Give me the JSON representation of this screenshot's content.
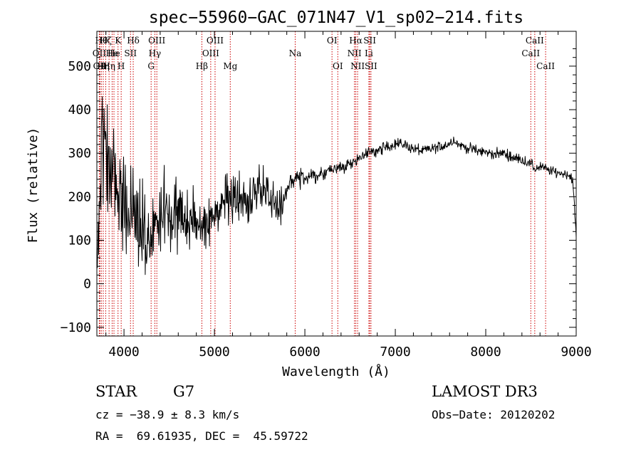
{
  "chart_data": {
    "type": "line",
    "title": "spec−55960−GAC_071N47_V1_sp02−214.fits",
    "xlabel": "Wavelength (Å)",
    "ylabel": "Flux (relative)",
    "xlim": [
      3700,
      9000
    ],
    "ylim": [
      -120,
      580
    ],
    "xticks": [
      4000,
      5000,
      6000,
      7000,
      8000,
      9000
    ],
    "xtick_labels": [
      "4000",
      "5000",
      "6000",
      "7000",
      "8000",
      "9000"
    ],
    "yticks": [
      -100,
      0,
      100,
      200,
      300,
      400,
      500
    ],
    "ytick_labels": [
      "−100",
      "0",
      "100",
      "200",
      "300",
      "400",
      "500"
    ],
    "grid": false,
    "series": [
      {
        "name": "flux",
        "color": "#000000",
        "anchors": {
          "x": [
            3700,
            3720,
            3760,
            3800,
            3850,
            3900,
            3950,
            4000,
            4050,
            4100,
            4150,
            4200,
            4250,
            4300,
            4350,
            4400,
            4500,
            4600,
            4700,
            4800,
            4860,
            4900,
            5000,
            5100,
            5200,
            5300,
            5400,
            5500,
            5600,
            5700,
            5760,
            5800,
            5850,
            5900,
            6000,
            6100,
            6200,
            6300,
            6400,
            6500,
            6560,
            6600,
            6700,
            6800,
            6900,
            7000,
            7100,
            7200,
            7300,
            7400,
            7500,
            7600,
            7640,
            7700,
            7800,
            7900,
            8000,
            8100,
            8200,
            8300,
            8400,
            8500,
            8550,
            8600,
            8700,
            8800,
            8900,
            8960,
            9000
          ],
          "y": [
            60,
            150,
            300,
            320,
            280,
            250,
            230,
            200,
            190,
            180,
            150,
            120,
            100,
            110,
            140,
            160,
            170,
            150,
            140,
            150,
            130,
            140,
            160,
            175,
            180,
            190,
            200,
            215,
            210,
            175,
            170,
            215,
            235,
            245,
            240,
            250,
            250,
            265,
            265,
            275,
            285,
            290,
            300,
            305,
            315,
            322,
            320,
            310,
            305,
            310,
            315,
            322,
            332,
            320,
            312,
            306,
            302,
            298,
            300,
            290,
            285,
            275,
            263,
            270,
            260,
            255,
            252,
            242,
            110
          ]
        },
        "noise": {
          "x": [
            3700,
            3800,
            4000,
            4300,
            4500,
            4800,
            5200,
            5700,
            5800,
            6500,
            9000
          ],
          "amplitude": [
            80,
            110,
            95,
            85,
            75,
            55,
            55,
            45,
            22,
            12,
            10
          ]
        }
      }
    ],
    "line_markers": [
      {
        "wavelength": 3727,
        "label": "OII",
        "row": 2
      },
      {
        "wavelength": 3734,
        "label": "OII",
        "row": 3
      },
      {
        "wavelength": 3750,
        "label": "Hθ",
        "row": 1
      },
      {
        "wavelength": 3771,
        "label": "Hη",
        "row": 3
      },
      {
        "wavelength": 3798,
        "label": "Hζ",
        "row": 1
      },
      {
        "wavelength": 3835,
        "label": "Hη",
        "row": 3
      },
      {
        "wavelength": 3869,
        "label": "He",
        "row": 2
      },
      {
        "wavelength": 3889,
        "label": "He",
        "row": 2
      },
      {
        "wavelength": 3934,
        "label": "K",
        "row": 1
      },
      {
        "wavelength": 3969,
        "label": "H",
        "row": 3
      },
      {
        "wavelength": 4072,
        "label": "SII",
        "row": 2
      },
      {
        "wavelength": 4102,
        "label": "Hδ",
        "row": 1
      },
      {
        "wavelength": 4300,
        "label": "G",
        "row": 3
      },
      {
        "wavelength": 4341,
        "label": "Hγ",
        "row": 2
      },
      {
        "wavelength": 4363,
        "label": "OIII",
        "row": 1
      },
      {
        "wavelength": 4861,
        "label": "Hβ",
        "row": 3
      },
      {
        "wavelength": 4959,
        "label": "OIII",
        "row": 2
      },
      {
        "wavelength": 5007,
        "label": "OIII",
        "row": 1
      },
      {
        "wavelength": 5175,
        "label": "Mg",
        "row": 3
      },
      {
        "wavelength": 5893,
        "label": "Na",
        "row": 2
      },
      {
        "wavelength": 6300,
        "label": "OI",
        "row": 1
      },
      {
        "wavelength": 6364,
        "label": "OI",
        "row": 3
      },
      {
        "wavelength": 6548,
        "label": "NII",
        "row": 2
      },
      {
        "wavelength": 6563,
        "label": "Hα",
        "row": 1
      },
      {
        "wavelength": 6583,
        "label": "NII",
        "row": 3
      },
      {
        "wavelength": 6708,
        "label": "Li",
        "row": 2
      },
      {
        "wavelength": 6717,
        "label": "SII",
        "row": 1
      },
      {
        "wavelength": 6731,
        "label": "SII",
        "row": 3
      },
      {
        "wavelength": 8498,
        "label": "CaII",
        "row": 2
      },
      {
        "wavelength": 8542,
        "label": "CaII",
        "row": 1
      },
      {
        "wavelength": 8662,
        "label": "CaII",
        "row": 3
      }
    ],
    "marker_color": "#cc0000"
  },
  "info": {
    "object_class": "STAR",
    "subclass": "G7",
    "survey": "LAMOST DR3",
    "redshift": "cz = −38.9 ± 8.3 km/s",
    "obs_date": "Obs−Date: 20120202",
    "coords": "RA =  69.61935, DEC =  45.59722"
  }
}
